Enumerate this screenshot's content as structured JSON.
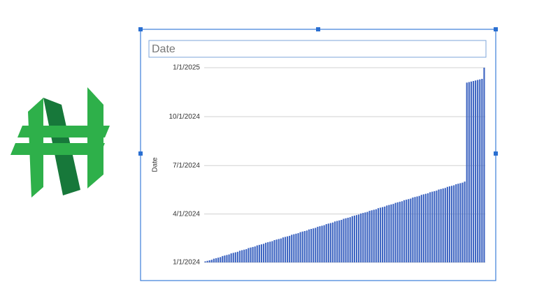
{
  "chart_data": {
    "type": "bar",
    "title": "Date",
    "y_label": "Date",
    "color": "#3f66c2",
    "ylim": [
      45292,
      45658
    ],
    "yticks": [
      {
        "value": 45292,
        "label": "1/1/2024"
      },
      {
        "value": 45383,
        "label": "4/1/2024"
      },
      {
        "value": 45474,
        "label": "7/1/2024"
      },
      {
        "value": 45566,
        "label": "10/1/2024"
      },
      {
        "value": 45658,
        "label": "1/1/2025"
      }
    ],
    "grid": true,
    "values": [
      45294,
      45295,
      45296,
      45297,
      45299,
      45300,
      45301,
      45302,
      45304,
      45305,
      45306,
      45307,
      45309,
      45310,
      45311,
      45312,
      45314,
      45315,
      45316,
      45317,
      45319,
      45320,
      45321,
      45322,
      45324,
      45325,
      45326,
      45327,
      45329,
      45330,
      45331,
      45332,
      45334,
      45335,
      45336,
      45337,
      45339,
      45340,
      45341,
      45342,
      45344,
      45345,
      45346,
      45347,
      45349,
      45350,
      45351,
      45352,
      45354,
      45355,
      45356,
      45357,
      45359,
      45360,
      45361,
      45362,
      45364,
      45365,
      45366,
      45367,
      45369,
      45370,
      45371,
      45372,
      45374,
      45375,
      45376,
      45377,
      45379,
      45380,
      45381,
      45382,
      45384,
      45385,
      45386,
      45387,
      45389,
      45390,
      45391,
      45392,
      45394,
      45395,
      45396,
      45397,
      45399,
      45400,
      45401,
      45402,
      45404,
      45405,
      45406,
      45407,
      45409,
      45410,
      45411,
      45412,
      45414,
      45415,
      45416,
      45417,
      45419,
      45420,
      45421,
      45422,
      45424,
      45425,
      45426,
      45427,
      45429,
      45430,
      45431,
      45432,
      45434,
      45435,
      45436,
      45437,
      45439,
      45440,
      45441,
      45442,
      45444,
      45630,
      45631,
      45632,
      45633,
      45634,
      45635,
      45636,
      45637,
      45658
    ]
  }
}
